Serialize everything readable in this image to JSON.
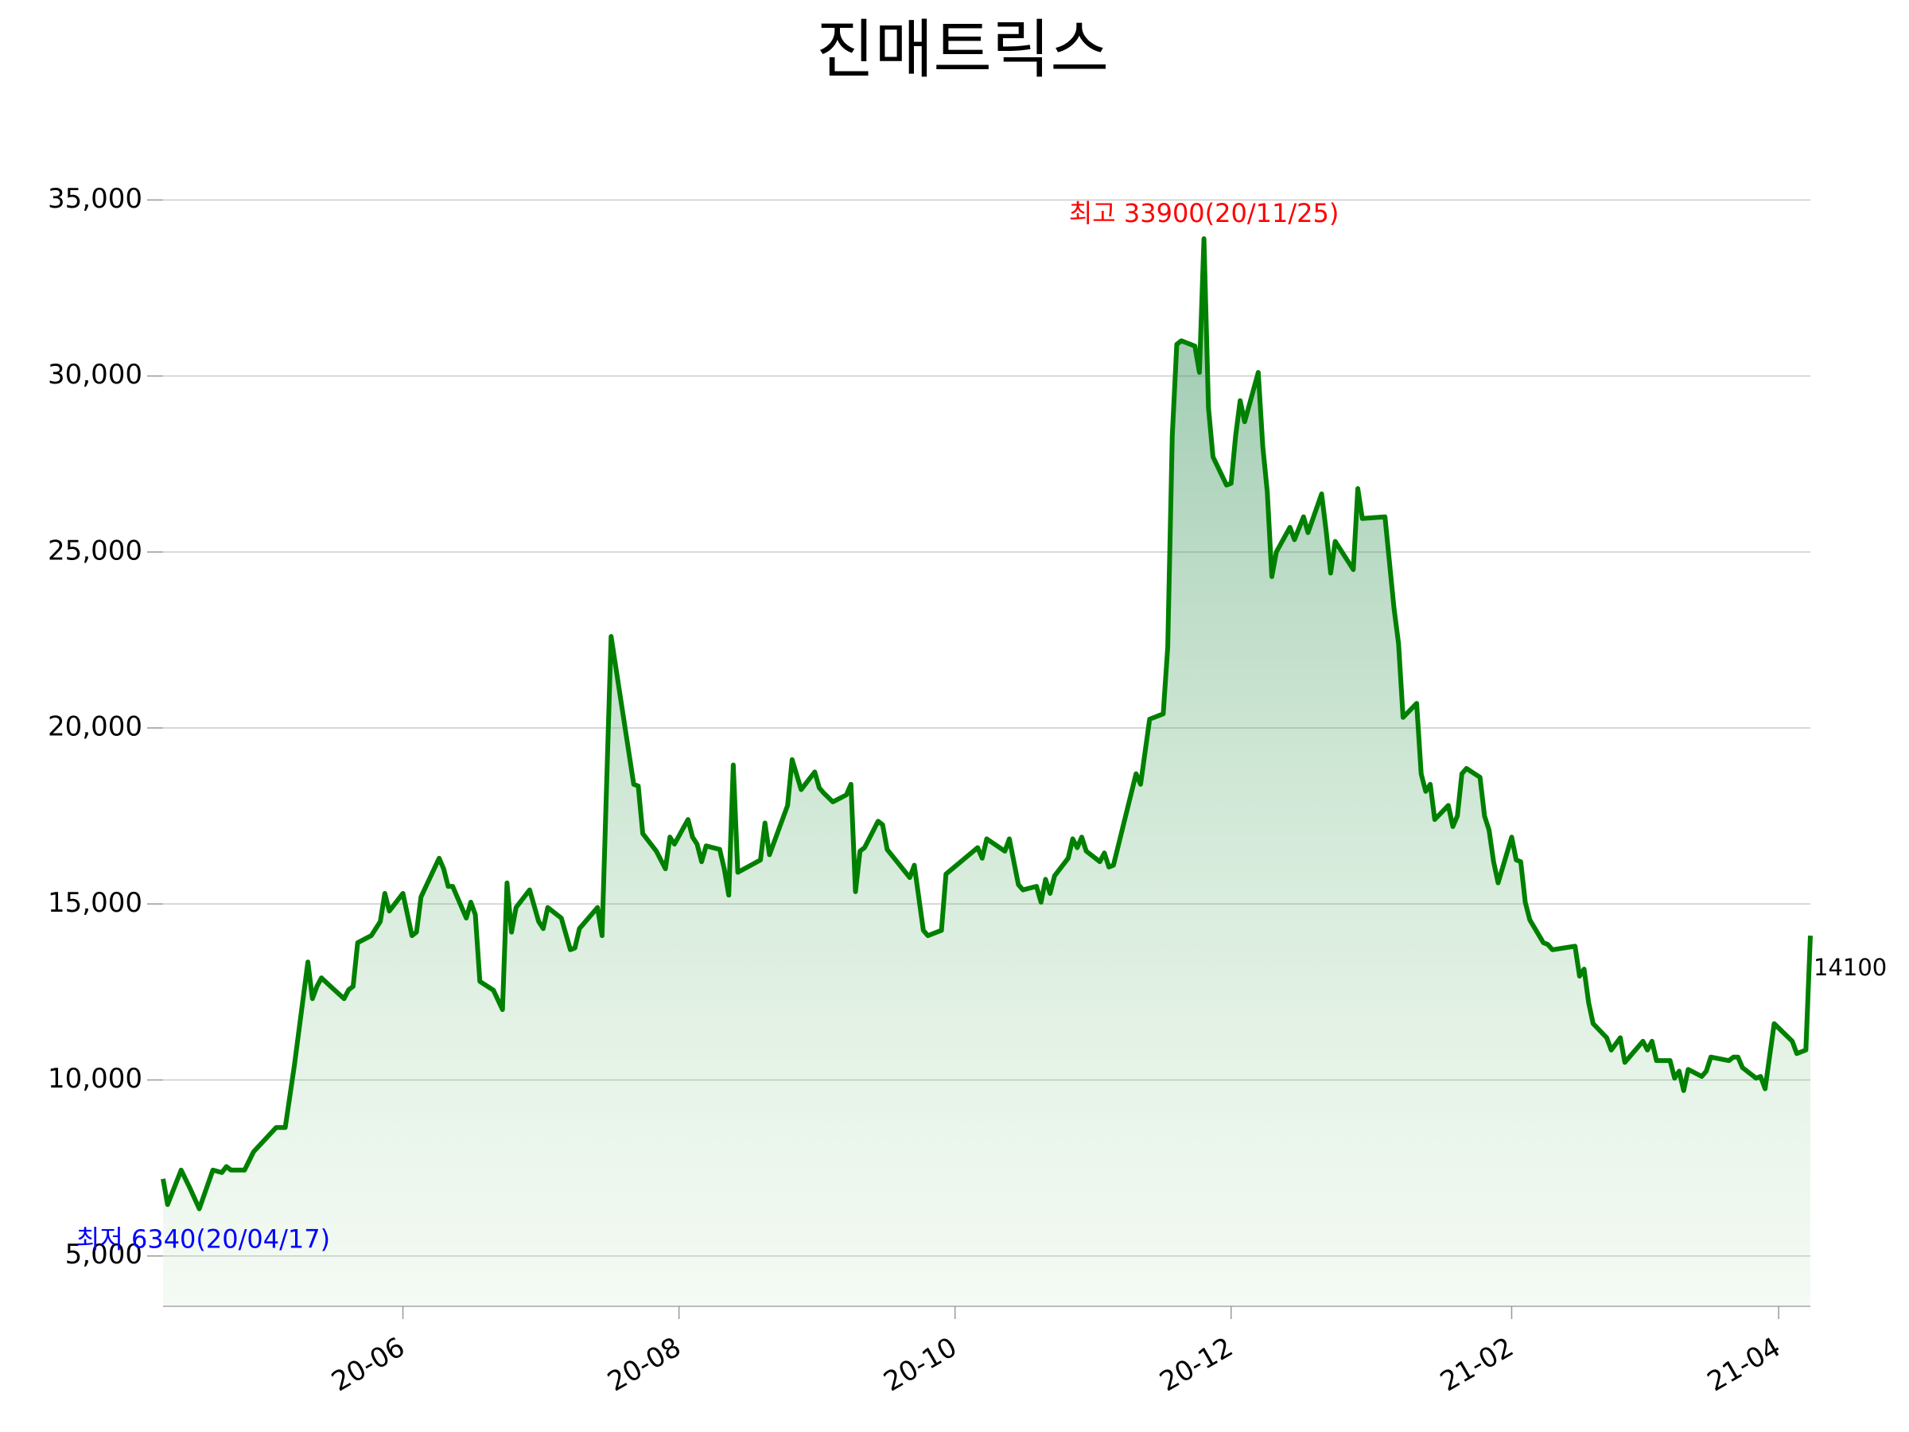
{
  "chart_data": {
    "type": "line",
    "title": "진매트릭스",
    "x": [
      "2020-04-09",
      "2020-04-10",
      "2020-04-13",
      "2020-04-15",
      "2020-04-17",
      "2020-04-20",
      "2020-04-22",
      "2020-04-23",
      "2020-04-24",
      "2020-04-27",
      "2020-04-29",
      "2020-05-04",
      "2020-05-06",
      "2020-05-08",
      "2020-05-11",
      "2020-05-12",
      "2020-05-13",
      "2020-05-14",
      "2020-05-16",
      "2020-05-19",
      "2020-05-20",
      "2020-05-21",
      "2020-05-22",
      "2020-05-25",
      "2020-05-27",
      "2020-05-28",
      "2020-05-29",
      "2020-06-01",
      "2020-06-03",
      "2020-06-04",
      "2020-06-05",
      "2020-06-09",
      "2020-06-10",
      "2020-06-11",
      "2020-06-12",
      "2020-06-15",
      "2020-06-16",
      "2020-06-17",
      "2020-06-18",
      "2020-06-21",
      "2020-06-23",
      "2020-06-24",
      "2020-06-25",
      "2020-06-26",
      "2020-06-29",
      "2020-07-01",
      "2020-07-02",
      "2020-07-03",
      "2020-07-06",
      "2020-07-08",
      "2020-07-09",
      "2020-07-10",
      "2020-07-14",
      "2020-07-15",
      "2020-07-17",
      "2020-07-22",
      "2020-07-23",
      "2020-07-24",
      "2020-07-27",
      "2020-07-29",
      "2020-07-30",
      "2020-07-31",
      "2020-08-03",
      "2020-08-04",
      "2020-08-05",
      "2020-08-06",
      "2020-08-07",
      "2020-08-10",
      "2020-08-11",
      "2020-08-12",
      "2020-08-13",
      "2020-08-14",
      "2020-08-19",
      "2020-08-20",
      "2020-08-21",
      "2020-08-25",
      "2020-08-26",
      "2020-08-28",
      "2020-08-31",
      "2020-09-01",
      "2020-09-02",
      "2020-09-04",
      "2020-09-07",
      "2020-09-08",
      "2020-09-09",
      "2020-09-10",
      "2020-09-11",
      "2020-09-14",
      "2020-09-15",
      "2020-09-16",
      "2020-09-21",
      "2020-09-22",
      "2020-09-24",
      "2020-09-25",
      "2020-09-28",
      "2020-09-29",
      "2020-10-06",
      "2020-10-07",
      "2020-10-08",
      "2020-10-12",
      "2020-10-13",
      "2020-10-15",
      "2020-10-16",
      "2020-10-19",
      "2020-10-20",
      "2020-10-21",
      "2020-10-22",
      "2020-10-23",
      "2020-10-26",
      "2020-10-27",
      "2020-10-28",
      "2020-10-29",
      "2020-10-30",
      "2020-11-02",
      "2020-11-03",
      "2020-11-04",
      "2020-11-05",
      "2020-11-10",
      "2020-11-11",
      "2020-11-13",
      "2020-11-16",
      "2020-11-17",
      "2020-11-18",
      "2020-11-19",
      "2020-11-20",
      "2020-11-23",
      "2020-11-24",
      "2020-11-25",
      "2020-11-26",
      "2020-11-27",
      "2020-11-30",
      "2020-12-01",
      "2020-12-02",
      "2020-12-03",
      "2020-12-04",
      "2020-12-07",
      "2020-12-08",
      "2020-12-09",
      "2020-12-10",
      "2020-12-11",
      "2020-12-14",
      "2020-12-15",
      "2020-12-17",
      "2020-12-18",
      "2020-12-21",
      "2020-12-22",
      "2020-12-23",
      "2020-12-24",
      "2020-12-28",
      "2020-12-29",
      "2020-12-30",
      "2021-01-04",
      "2021-01-06",
      "2021-01-07",
      "2021-01-08",
      "2021-01-11",
      "2021-01-12",
      "2021-01-13",
      "2021-01-14",
      "2021-01-15",
      "2021-01-18",
      "2021-01-19",
      "2021-01-20",
      "2021-01-21",
      "2021-01-22",
      "2021-01-25",
      "2021-01-26",
      "2021-01-27",
      "2021-01-28",
      "2021-01-29",
      "2021-02-01",
      "2021-02-02",
      "2021-02-03",
      "2021-02-04",
      "2021-02-05",
      "2021-02-08",
      "2021-02-09",
      "2021-02-10",
      "2021-02-15",
      "2021-02-16",
      "2021-02-17",
      "2021-02-18",
      "2021-02-19",
      "2021-02-22",
      "2021-02-23",
      "2021-02-25",
      "2021-02-26",
      "2021-03-02",
      "2021-03-03",
      "2021-03-04",
      "2021-03-05",
      "2021-03-08",
      "2021-03-09",
      "2021-03-10",
      "2021-03-11",
      "2021-03-12",
      "2021-03-15",
      "2021-03-16",
      "2021-03-17",
      "2021-03-21",
      "2021-03-22",
      "2021-03-23",
      "2021-03-24",
      "2021-03-27",
      "2021-03-28",
      "2021-03-29",
      "2021-03-31",
      "2021-04-04",
      "2021-04-05",
      "2021-04-07",
      "2021-04-08"
    ],
    "series": [
      {
        "color": "#008000",
        "values": [
          7190,
          6460,
          7440,
          6910,
          6340,
          7440,
          7370,
          7540,
          7440,
          7440,
          7960,
          8650,
          8650,
          10400,
          13350,
          12310,
          12660,
          12900,
          12660,
          12310,
          12560,
          12660,
          13900,
          14100,
          14500,
          15300,
          14800,
          15300,
          14100,
          14200,
          15200,
          16300,
          16000,
          15500,
          15500,
          14600,
          15050,
          14700,
          12800,
          12550,
          12000,
          15600,
          14200,
          14900,
          15400,
          14500,
          14300,
          14900,
          14600,
          13700,
          13750,
          14300,
          14900,
          14100,
          22600,
          18400,
          18350,
          17000,
          16500,
          16000,
          16900,
          16700,
          17400,
          16900,
          16700,
          16200,
          16650,
          16550,
          16000,
          15250,
          18950,
          15900,
          16250,
          17300,
          16400,
          17800,
          19100,
          18250,
          18750,
          18300,
          18150,
          17900,
          18100,
          18400,
          15350,
          16500,
          16600,
          17350,
          17250,
          16550,
          15750,
          16100,
          14250,
          14100,
          14250,
          15850,
          16600,
          16300,
          16850,
          16500,
          16850,
          15550,
          15400,
          15500,
          15050,
          15700,
          15300,
          15800,
          16300,
          16850,
          16600,
          16900,
          16500,
          16200,
          16450,
          16050,
          16100,
          18700,
          18400,
          20250,
          20400,
          22300,
          28300,
          30900,
          31000,
          30850,
          30100,
          33900,
          29100,
          27700,
          26900,
          26950,
          28300,
          29300,
          28700,
          30100,
          28000,
          26700,
          24300,
          25000,
          25700,
          25350,
          26000,
          25550,
          26650,
          25600,
          24400,
          25300,
          24500,
          26800,
          25950,
          26000,
          23400,
          22400,
          20300,
          20700,
          18700,
          18200,
          18400,
          17400,
          17800,
          17200,
          17500,
          18700,
          18850,
          18600,
          17500,
          17100,
          16200,
          15600,
          16900,
          16250,
          16200,
          15050,
          14550,
          13900,
          13850,
          13700,
          13800,
          12950,
          13150,
          12200,
          11600,
          11200,
          10850,
          11200,
          10500,
          11100,
          10850,
          11100,
          10550,
          10550,
          10050,
          10250,
          9700,
          10300,
          10100,
          10250,
          10650,
          10550,
          10650,
          10650,
          10350,
          10050,
          10100,
          9750,
          11600,
          11100,
          10750,
          10850,
          14100
        ]
      }
    ],
    "xlim": [
      "2020-04-09",
      "2021-04-08"
    ],
    "xticks": [
      {
        "value": "2020-06-01",
        "label": "20-06"
      },
      {
        "value": "2020-08-01",
        "label": "20-08"
      },
      {
        "value": "2020-10-01",
        "label": "20-10"
      },
      {
        "value": "2020-12-01",
        "label": "20-12"
      },
      {
        "value": "2021-02-01",
        "label": "21-02"
      },
      {
        "value": "2021-04-01",
        "label": "21-04"
      }
    ],
    "ylim": [
      3570,
      36500
    ],
    "yticks": [
      {
        "value": 5000,
        "label": "5,000"
      },
      {
        "value": 10000,
        "label": "10,000"
      },
      {
        "value": 15000,
        "label": "15,000"
      },
      {
        "value": 20000,
        "label": "20,000"
      },
      {
        "value": 25000,
        "label": "25,000"
      },
      {
        "value": 30000,
        "label": "30,000"
      },
      {
        "value": 35000,
        "label": "35,000"
      }
    ],
    "grid": true,
    "max_label": {
      "text": "최고 33900(20/11/25)",
      "color": "#ff0000"
    },
    "min_label": {
      "text": "최저 6340(20/04/17)",
      "color": "#0000ff"
    },
    "last_label": {
      "text": "14100",
      "color": "#000000"
    }
  }
}
